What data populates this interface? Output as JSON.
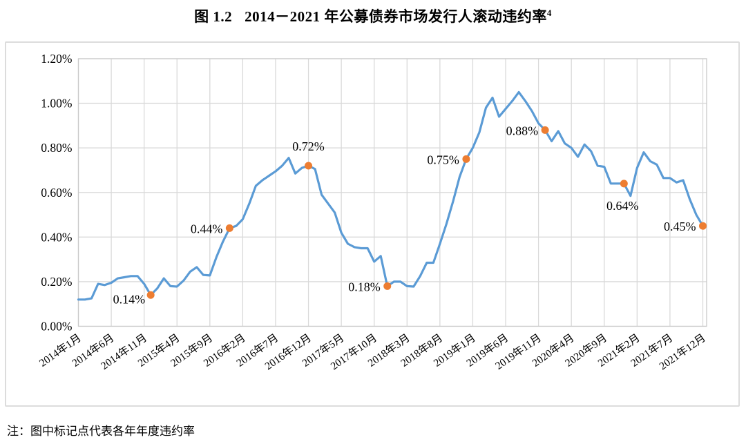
{
  "title": {
    "prefix": "图 1.2",
    "main": "2014－2021 年公募债券市场发行人滚动违约率",
    "superscript": "4"
  },
  "note": "注：图中标记点代表各年年度违约率",
  "colors": {
    "line": "#5B9BD5",
    "marker": "#ED7D31",
    "grid": "#D9D9D9",
    "plot_border": "#C9C9C9",
    "text": "#000000"
  },
  "chart_data": {
    "type": "line",
    "title": "图 1.2 2014－2021 年公募债券市场发行人滚动违约率",
    "x_description": "monthly series, 2014年1月 (index 0) to 2021年12月 (index 95)",
    "x_tick_labels": [
      "2014年1月",
      "2014年6月",
      "2014年11月",
      "2015年4月",
      "2015年9月",
      "2016年2月",
      "2016年7月",
      "2016年12月",
      "2017年5月",
      "2017年10月",
      "2018年3月",
      "2018年8月",
      "2019年1月",
      "2019年6月",
      "2019年11月",
      "2020年4月",
      "2020年9月",
      "2021年2月",
      "2021年7月",
      "2021年12月"
    ],
    "x_tick_month_indices": [
      0,
      5,
      10,
      15,
      20,
      25,
      30,
      35,
      40,
      45,
      50,
      55,
      60,
      65,
      70,
      75,
      80,
      85,
      90,
      95
    ],
    "y_tick_labels": [
      "0.00%",
      "0.20%",
      "0.40%",
      "0.60%",
      "0.80%",
      "1.00%",
      "1.20%"
    ],
    "ylim": [
      0,
      1.2
    ],
    "grid": true,
    "legend": "none",
    "values_unit": "percent",
    "values": [
      0.12,
      0.12,
      0.125,
      0.19,
      0.185,
      0.195,
      0.215,
      0.22,
      0.225,
      0.225,
      0.19,
      0.14,
      0.17,
      0.215,
      0.18,
      0.178,
      0.205,
      0.245,
      0.265,
      0.23,
      0.228,
      0.31,
      0.38,
      0.44,
      0.45,
      0.48,
      0.55,
      0.63,
      0.655,
      0.675,
      0.695,
      0.72,
      0.755,
      0.685,
      0.71,
      0.72,
      0.705,
      0.59,
      0.55,
      0.51,
      0.42,
      0.37,
      0.355,
      0.35,
      0.35,
      0.29,
      0.315,
      0.18,
      0.2,
      0.2,
      0.18,
      0.178,
      0.225,
      0.285,
      0.285,
      0.37,
      0.46,
      0.56,
      0.67,
      0.75,
      0.8,
      0.87,
      0.98,
      1.025,
      0.94,
      0.975,
      1.01,
      1.05,
      1.01,
      0.965,
      0.91,
      0.88,
      0.83,
      0.875,
      0.82,
      0.8,
      0.76,
      0.815,
      0.785,
      0.72,
      0.715,
      0.64,
      0.64,
      0.64,
      0.585,
      0.71,
      0.78,
      0.74,
      0.725,
      0.665,
      0.665,
      0.645,
      0.655,
      0.57,
      0.5,
      0.45
    ],
    "annotations": [
      {
        "month_index": 11,
        "text": "0.14%",
        "value": 0.14,
        "placement": "left-low"
      },
      {
        "month_index": 23,
        "text": "0.44%",
        "value": 0.44,
        "placement": "left"
      },
      {
        "month_index": 35,
        "text": "0.72%",
        "value": 0.72,
        "placement": "above"
      },
      {
        "month_index": 47,
        "text": "0.18%",
        "value": 0.18,
        "placement": "left"
      },
      {
        "month_index": 59,
        "text": "0.75%",
        "value": 0.75,
        "placement": "left"
      },
      {
        "month_index": 71,
        "text": "0.88%",
        "value": 0.88,
        "placement": "left"
      },
      {
        "month_index": 83,
        "text": "0.64%",
        "value": 0.64,
        "placement": "below"
      },
      {
        "month_index": 95,
        "text": "0.45%",
        "value": 0.45,
        "placement": "left"
      }
    ]
  }
}
